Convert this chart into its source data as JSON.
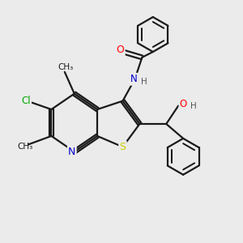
{
  "background_color": "#ebebeb",
  "bond_color": "#1a1a1a",
  "atom_colors": {
    "O": "#ff0000",
    "N": "#0000cc",
    "S": "#cccc00",
    "Cl": "#00aa00",
    "H": "#555555",
    "C": "#1a1a1a"
  },
  "figsize": [
    3.0,
    3.0
  ],
  "dpi": 100,
  "xlim": [
    0,
    10
  ],
  "ylim": [
    0,
    10
  ]
}
